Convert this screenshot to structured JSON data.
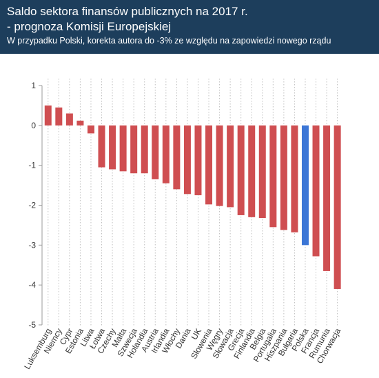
{
  "header": {
    "title_line1": "Saldo sektora finansów publicznych na 2017 r.",
    "title_line2": "- prognoza Komisji Europejskiej",
    "subtitle": "W przypadku Polski, korekta autora do -3% ze względu na zapowiedzi nowego rządu"
  },
  "chart_data": {
    "type": "bar",
    "title": "Saldo sektora finansów publicznych na 2017 r. - prognoza Komisji Europejskiej",
    "subtitle": "W przypadku Polski, korekta autora do -3% ze względu na zapowiedzi nowego rządu",
    "xlabel": "",
    "ylabel": "",
    "ylim": [
      -5,
      1
    ],
    "yticks": [
      1,
      0,
      -1,
      -2,
      -3,
      -4,
      -5
    ],
    "grid": "vertical-dotted",
    "legend": "none",
    "categories": [
      "Luksemburg",
      "Niemcy",
      "Cypr",
      "Estonia",
      "Litwa",
      "Łotwa",
      "Czechy",
      "Malta",
      "Szwecja",
      "Holandia",
      "Austria",
      "Irlandia",
      "Włochy",
      "Dania",
      "UK",
      "Słowenia",
      "Węgry",
      "Słowacja",
      "Grecja",
      "Finlandia",
      "Belgia",
      "Portugalia",
      "Hiszpania",
      "Bułgaria",
      "Polska",
      "Francja",
      "Rumunia",
      "Chorwacja"
    ],
    "values": [
      0.5,
      0.45,
      0.3,
      0.12,
      -0.2,
      -1.05,
      -1.1,
      -1.15,
      -1.2,
      -1.2,
      -1.35,
      -1.45,
      -1.6,
      -1.72,
      -1.75,
      -1.98,
      -2.02,
      -2.05,
      -2.25,
      -2.3,
      -2.32,
      -2.55,
      -2.62,
      -2.68,
      -3.0,
      -3.28,
      -3.65,
      -4.1
    ],
    "highlight": "Polska",
    "colors": {
      "bar": "#cf4e51",
      "highlight": "#3b76d6",
      "header": "#1d3e5c"
    }
  }
}
